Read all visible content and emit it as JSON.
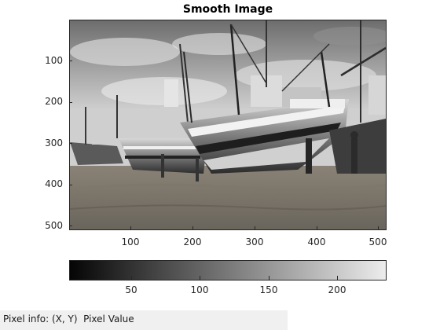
{
  "figure": {
    "title": "Smooth Image"
  },
  "image_axes": {
    "y_ticks": [
      "100",
      "200",
      "300",
      "400",
      "500"
    ],
    "x_ticks": [
      "100",
      "200",
      "300",
      "400",
      "500"
    ],
    "x_range": [
      1,
      512
    ],
    "y_range": [
      1,
      512
    ],
    "colormap": "gray"
  },
  "colorbar": {
    "ticks": [
      "50",
      "100",
      "150",
      "200"
    ],
    "range": [
      5,
      236
    ]
  },
  "status": {
    "pixel_info_label": "Pixel info:",
    "pixel_info_value": "(X, Y)  Pixel Value"
  }
}
